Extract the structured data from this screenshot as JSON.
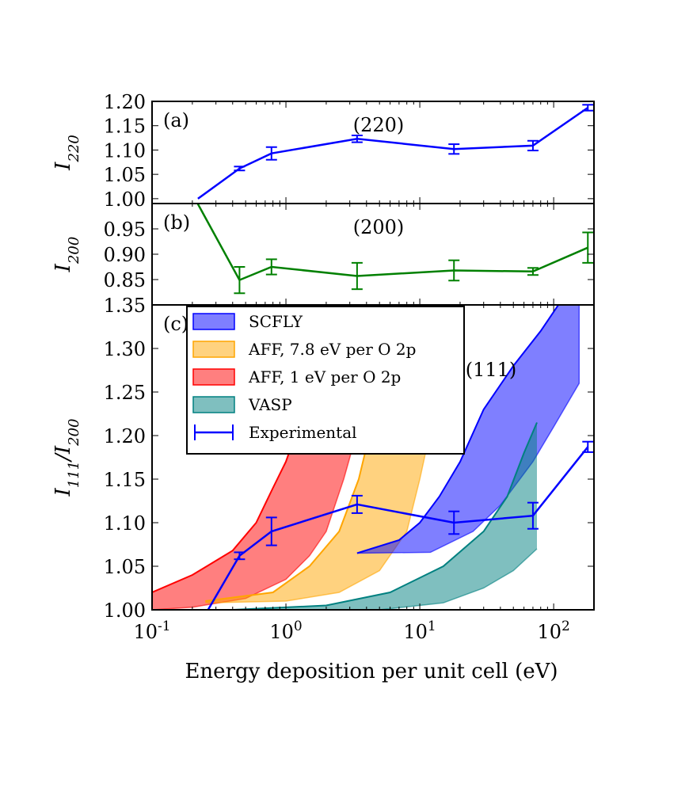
{
  "chart_data": [
    {
      "panel": "(a)",
      "type": "line",
      "annotation": "(220)",
      "ylabel": "I_220",
      "xscale": "log",
      "xlim": [
        0.1,
        200
      ],
      "ylim": [
        0.99,
        1.2
      ],
      "yticks": [
        "1.00",
        "1.05",
        "1.10",
        "1.15",
        "1.20"
      ],
      "series": [
        {
          "name": "Experimental",
          "color": "#0000ff",
          "x": [
            0.22,
            0.45,
            0.78,
            3.4,
            18,
            70,
            180
          ],
          "y": [
            1.0,
            1.062,
            1.093,
            1.123,
            1.102,
            1.109,
            1.187
          ],
          "err": [
            0.0,
            0.004,
            0.013,
            0.007,
            0.01,
            0.01,
            0.006
          ]
        }
      ]
    },
    {
      "panel": "(b)",
      "type": "line",
      "annotation": "(200)",
      "ylabel": "I_200",
      "xscale": "log",
      "xlim": [
        0.1,
        200
      ],
      "ylim": [
        0.8,
        1.0
      ],
      "yticks": [
        "0.85",
        "0.90",
        "0.95"
      ],
      "series": [
        {
          "color": "#008000",
          "x": [
            0.22,
            0.45,
            0.78,
            3.4,
            18,
            70,
            180
          ],
          "y": [
            0.999,
            0.849,
            0.875,
            0.857,
            0.868,
            0.866,
            0.913
          ],
          "err": [
            0.0,
            0.026,
            0.015,
            0.026,
            0.02,
            0.007,
            0.03
          ]
        }
      ]
    },
    {
      "panel": "(c)",
      "type": "area",
      "annotation": "(111)",
      "ylabel": "I_111/I_200",
      "xlabel": "Energy deposition per unit cell (eV)",
      "xscale": "log",
      "xlim": [
        0.1,
        200
      ],
      "ylim": [
        1.0,
        1.35
      ],
      "yticks": [
        "1.00",
        "1.05",
        "1.10",
        "1.15",
        "1.20",
        "1.25",
        "1.30",
        "1.35"
      ],
      "xticks": [
        "10",
        "10",
        "10",
        "10"
      ],
      "xtick_exponents": [
        "-1",
        "0",
        "1",
        "2"
      ],
      "legend_position": "top-left",
      "legend": [
        "SCFLY",
        "AFF, 7.8 eV per O 2p",
        "AFF, 1 eV per O 2p",
        "VASP",
        "Experimental"
      ],
      "bands": [
        {
          "name": "AFF, 1 eV per O 2p",
          "fill": "#ff0000",
          "edge": "#ff0000",
          "upper": [
            [
              0.1,
              1.02
            ],
            [
              0.2,
              1.04
            ],
            [
              0.4,
              1.068
            ],
            [
              0.6,
              1.1
            ],
            [
              0.8,
              1.14
            ],
            [
              1.0,
              1.17
            ],
            [
              1.3,
              1.22
            ],
            [
              1.6,
              1.27
            ],
            [
              2.0,
              1.33
            ],
            [
              2.2,
              1.36
            ]
          ],
          "lower": [
            [
              0.1,
              1.0
            ],
            [
              0.2,
              1.003
            ],
            [
              0.5,
              1.013
            ],
            [
              1.0,
              1.035
            ],
            [
              1.5,
              1.062
            ],
            [
              2.0,
              1.09
            ],
            [
              2.7,
              1.15
            ],
            [
              3.2,
              1.19
            ],
            [
              3.7,
              1.23
            ],
            [
              4.2,
              1.27
            ],
            [
              4.7,
              1.31
            ],
            [
              5.2,
              1.36
            ]
          ]
        },
        {
          "name": "AFF, 7.8 eV per O 2p",
          "fill": "#ffa500",
          "edge": "#ffa500",
          "upper": [
            [
              0.25,
              1.01
            ],
            [
              0.8,
              1.02
            ],
            [
              1.5,
              1.05
            ],
            [
              2.5,
              1.09
            ],
            [
              3.5,
              1.15
            ],
            [
              4.5,
              1.22
            ],
            [
              5.5,
              1.3
            ],
            [
              6.2,
              1.36
            ]
          ],
          "lower": [
            [
              0.25,
              1.008
            ],
            [
              1.0,
              1.01
            ],
            [
              2.5,
              1.02
            ],
            [
              5.0,
              1.045
            ],
            [
              8.0,
              1.09
            ],
            [
              10.0,
              1.15
            ],
            [
              13.0,
              1.23
            ],
            [
              16.0,
              1.3
            ],
            [
              18.0,
              1.36
            ]
          ]
        },
        {
          "name": "SCFLY",
          "fill": "#0000ff",
          "edge": "#0000ff",
          "upper": [
            [
              3.4,
              1.065
            ],
            [
              7.0,
              1.08
            ],
            [
              10.0,
              1.1
            ],
            [
              14.0,
              1.13
            ],
            [
              20.0,
              1.17
            ],
            [
              30.0,
              1.23
            ],
            [
              50.0,
              1.28
            ],
            [
              80.0,
              1.32
            ],
            [
              120.0,
              1.36
            ]
          ],
          "lower": [
            [
              3.4,
              1.065
            ],
            [
              12.0,
              1.066
            ],
            [
              25.0,
              1.09
            ],
            [
              40.0,
              1.12
            ],
            [
              70.0,
              1.17
            ],
            [
              100.0,
              1.21
            ],
            [
              155.0,
              1.26
            ],
            [
              155.0,
              1.36
            ]
          ]
        },
        {
          "name": "VASP",
          "fill": "#008080",
          "edge": "#008080",
          "upper": [
            [
              0.4,
              1.0
            ],
            [
              2.0,
              1.005
            ],
            [
              6.0,
              1.02
            ],
            [
              15.0,
              1.05
            ],
            [
              30.0,
              1.09
            ],
            [
              45.0,
              1.13
            ],
            [
              60.0,
              1.18
            ],
            [
              75.0,
              1.215
            ]
          ],
          "lower": [
            [
              0.4,
              1.0
            ],
            [
              5.0,
              1.0
            ],
            [
              15.0,
              1.008
            ],
            [
              30.0,
              1.025
            ],
            [
              50.0,
              1.045
            ],
            [
              75.0,
              1.07
            ]
          ]
        }
      ],
      "series": [
        {
          "name": "Experimental",
          "color": "#0000ff",
          "x": [
            0.22,
            0.45,
            0.78,
            3.4,
            18,
            70,
            180
          ],
          "y": [
            0.98,
            1.062,
            1.09,
            1.121,
            1.1,
            1.108,
            1.187
          ],
          "err": [
            0.0,
            0.004,
            0.016,
            0.01,
            0.013,
            0.015,
            0.006
          ]
        }
      ]
    }
  ]
}
